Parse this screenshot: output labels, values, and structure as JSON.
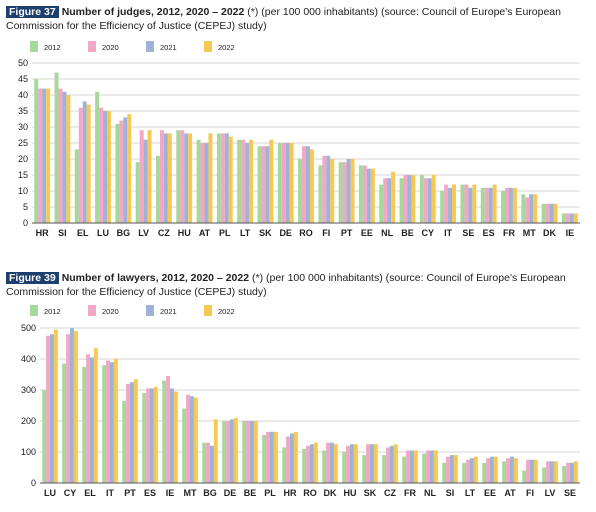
{
  "colors": {
    "2012": "#a6d89c",
    "2020": "#f2a7c4",
    "2021": "#9fb3d8",
    "2022": "#f6c954",
    "grid": "#c8c8c8",
    "badge": "#1c3f6e"
  },
  "figure37": {
    "badge": "Figure 37",
    "title_bold": "Number of judges, 2012, 2020 – 2022",
    "title_rest": " (*) (per 100 000 inhabitants) (source: Council of Europe's European",
    "title_line2": "Commission for the Efficiency of Justice (CEPEJ) study)"
  },
  "figure39": {
    "badge": "Figure 39",
    "title_bold": "Number of lawyers, 2012, 2020 – 2022",
    "title_rest": " (*) (per 100 000 inhabitants) (source: Council of Europe's European",
    "title_line2": "Commission for the Efficiency of Justice (CEPEJ) study)"
  },
  "chart_data": [
    {
      "type": "bar",
      "title": "Number of judges, 2012, 2020 – 2022",
      "categories": [
        "HR",
        "SI",
        "EL",
        "LU",
        "BG",
        "LV",
        "CZ",
        "HU",
        "AT",
        "PL",
        "LT",
        "SK",
        "DE",
        "RO",
        "FI",
        "PT",
        "EE",
        "NL",
        "BE",
        "CY",
        "IT",
        "SE",
        "ES",
        "FR",
        "MT",
        "DK",
        "IE"
      ],
      "ylim": [
        0,
        50
      ],
      "yticks": [
        0,
        5,
        10,
        15,
        20,
        25,
        30,
        35,
        40,
        45,
        50
      ],
      "grid": true,
      "legend": "top-left",
      "series": [
        {
          "name": "2012",
          "values": [
            45,
            47,
            23,
            41,
            31,
            19,
            21,
            29,
            26,
            28,
            26,
            24,
            25,
            20,
            18,
            19,
            18,
            12,
            14,
            15,
            10,
            12,
            11,
            10,
            9,
            6,
            3
          ]
        },
        {
          "name": "2020",
          "values": [
            42,
            42,
            36,
            36,
            32,
            29,
            29,
            29,
            25,
            28,
            26,
            24,
            25,
            24,
            21,
            19,
            18,
            14,
            15,
            14,
            12,
            12,
            11,
            11,
            8,
            6,
            3
          ]
        },
        {
          "name": "2021",
          "values": [
            42,
            41,
            38,
            35,
            33,
            26,
            28,
            28,
            25,
            28,
            25,
            24,
            25,
            24,
            21,
            20,
            17,
            14,
            15,
            14,
            11,
            11,
            11,
            11,
            9,
            6,
            3
          ]
        },
        {
          "name": "2022",
          "values": [
            42,
            40,
            37,
            35,
            34,
            29,
            28,
            28,
            28,
            27,
            26,
            26,
            25,
            23,
            20,
            20,
            17,
            16,
            15,
            15,
            12,
            12,
            12,
            11,
            9,
            6,
            3
          ]
        }
      ]
    },
    {
      "type": "bar",
      "title": "Number of lawyers, 2012, 2020 – 2022",
      "categories": [
        "LU",
        "CY",
        "EL",
        "IT",
        "PT",
        "ES",
        "IE",
        "MT",
        "BG",
        "DE",
        "BE",
        "PL",
        "HR",
        "RO",
        "DK",
        "HU",
        "SK",
        "CZ",
        "FR",
        "NL",
        "SI",
        "LT",
        "EE",
        "AT",
        "FI",
        "LV",
        "SE"
      ],
      "ylim": [
        0,
        500
      ],
      "yticks": [
        0,
        100,
        200,
        300,
        400,
        500
      ],
      "grid": true,
      "legend": "top-left",
      "series": [
        {
          "name": "2012",
          "values": [
            300,
            385,
            375,
            380,
            265,
            290,
            330,
            240,
            130,
            200,
            200,
            155,
            115,
            110,
            105,
            100,
            90,
            90,
            85,
            95,
            65,
            65,
            65,
            70,
            40,
            50,
            55
          ]
        },
        {
          "name": "2020",
          "values": [
            475,
            480,
            415,
            395,
            320,
            305,
            345,
            285,
            130,
            200,
            200,
            165,
            150,
            120,
            130,
            120,
            125,
            115,
            105,
            105,
            85,
            75,
            80,
            80,
            75,
            70,
            65
          ]
        },
        {
          "name": "2021",
          "values": [
            480,
            500,
            405,
            390,
            325,
            305,
            305,
            280,
            120,
            205,
            200,
            165,
            160,
            125,
            130,
            125,
            125,
            120,
            105,
            105,
            90,
            80,
            85,
            85,
            75,
            70,
            65
          ]
        },
        {
          "name": "2022",
          "values": [
            495,
            490,
            435,
            400,
            335,
            310,
            295,
            275,
            205,
            210,
            200,
            165,
            165,
            130,
            125,
            125,
            125,
            125,
            105,
            105,
            90,
            85,
            85,
            80,
            75,
            70,
            70
          ]
        }
      ]
    }
  ]
}
